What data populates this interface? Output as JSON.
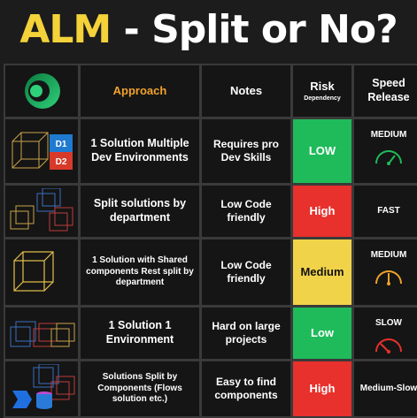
{
  "title": {
    "part1": "ALM",
    "part2": " - Split or No?"
  },
  "header": {
    "approach": "Approach",
    "notes": "Notes",
    "risk": "Risk",
    "risk_sub": "Dependency",
    "speed_line1": "Speed",
    "speed_line2": "Release"
  },
  "rows": [
    {
      "approach": "1 Solution Multiple Dev Environments",
      "notes": "Requires pro Dev Skills",
      "risk": "LOW",
      "speed": "MEDIUM",
      "icon_labels": [
        "D1",
        "D2"
      ]
    },
    {
      "approach": "Split solutions by department",
      "notes": "Low Code friendly",
      "risk": "High",
      "speed": "FAST"
    },
    {
      "approach": "1 Solution with Shared components Rest split by department",
      "notes": "Low Code friendly",
      "risk": "Medium",
      "speed": "MEDIUM"
    },
    {
      "approach": "1 Solution 1 Environment",
      "notes": "Hard on large projects",
      "risk": "Low",
      "speed": "SLOW"
    },
    {
      "approach": "Solutions Split by Components (Flows solution etc.)",
      "notes": "Easy to find components",
      "risk": "High",
      "speed": "Medium-Slow"
    }
  ],
  "colors": {
    "title_accent": "#f3d23a",
    "header_accent": "#f0a22d",
    "risk_low": "#1fbb5a",
    "risk_high": "#e8302c",
    "risk_medium": "#f1d34a"
  }
}
